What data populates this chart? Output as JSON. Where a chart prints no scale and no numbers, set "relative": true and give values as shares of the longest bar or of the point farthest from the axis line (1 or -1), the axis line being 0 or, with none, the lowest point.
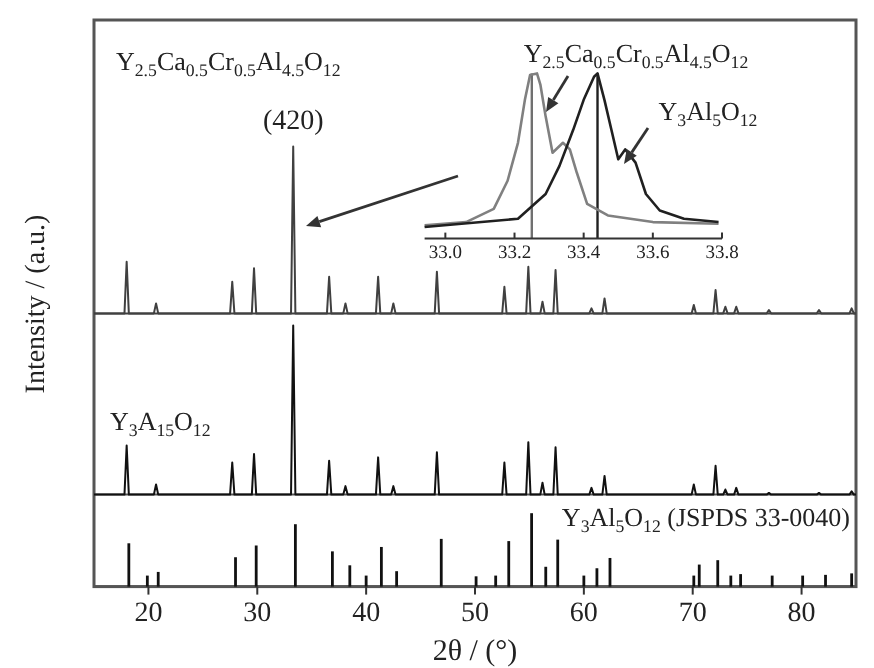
{
  "chart_data": [
    {
      "type": "line",
      "relative": true,
      "xlim": [
        15,
        85
      ],
      "tick_labels": false,
      "annotations": [
        "Y$_{2.5}$Ca$_{0.5}$Cr$_{0.5}$Al$_{4.5}$O$_{12}$",
        {
          "text": "(420)",
          "x": 33.3,
          "y": 1
        }
      ],
      "x": [
        15,
        17.8,
        18,
        18.2,
        20.5,
        20.7,
        20.9,
        27.5,
        27.7,
        27.9,
        29.5,
        29.7,
        29.9,
        33.1,
        33.3,
        33.5,
        36.4,
        36.6,
        36.8,
        37.9,
        38.1,
        38.3,
        40.9,
        41.1,
        41.3,
        42.3,
        42.5,
        42.7,
        46.3,
        46.5,
        46.7,
        52.5,
        52.7,
        52.9,
        54.7,
        54.9,
        55.1,
        56,
        56.2,
        56.4,
        57.2,
        57.4,
        57.6,
        60.5,
        60.7,
        60.9,
        61.7,
        61.9,
        62.1,
        69.9,
        70.1,
        70.3,
        71.9,
        72.1,
        72.3,
        72.8,
        73,
        73.2,
        73.8,
        74,
        74.2,
        76.8,
        77,
        77.2,
        81.4,
        81.6,
        81.8,
        84.4,
        84.6,
        84.8,
        85
      ],
      "series": [
        {
          "color": "#404040",
          "values": [
            0,
            0,
            0.31,
            0,
            0,
            0.06,
            0,
            0,
            0.19,
            0,
            0,
            0.27,
            0,
            0,
            1,
            0,
            0,
            0.22,
            0,
            0,
            0.06,
            0,
            0,
            0.22,
            0,
            0,
            0.06,
            0,
            0,
            0.25,
            0,
            0,
            0.16,
            0,
            0,
            0.28,
            0,
            0,
            0.07,
            0,
            0,
            0.26,
            0,
            0,
            0.03,
            0,
            0,
            0.09,
            0,
            0,
            0.05,
            0,
            0,
            0.14,
            0,
            0,
            0.04,
            0,
            0,
            0.04,
            0,
            0,
            0.02,
            0,
            0,
            0.02,
            0,
            0,
            0.03,
            0,
            0
          ]
        }
      ]
    },
    {
      "type": "line",
      "relative": true,
      "xlim": [
        15,
        85
      ],
      "tick_labels": false,
      "ylabel": "Intensity / (a.u.)",
      "annotations": [
        "Y$_{3}$A$_{15}$O$_{12}$"
      ],
      "x": [
        15,
        17.8,
        18,
        18.2,
        20.5,
        20.7,
        20.9,
        27.5,
        27.7,
        27.9,
        29.5,
        29.7,
        29.9,
        33.1,
        33.3,
        33.5,
        36.4,
        36.6,
        36.8,
        37.9,
        38.1,
        38.3,
        40.9,
        41.1,
        41.3,
        42.3,
        42.5,
        42.7,
        46.3,
        46.5,
        46.7,
        52.5,
        52.7,
        52.9,
        54.7,
        54.9,
        55.1,
        56,
        56.2,
        56.4,
        57.2,
        57.4,
        57.6,
        60.5,
        60.7,
        60.9,
        61.7,
        61.9,
        62.1,
        69.9,
        70.1,
        70.3,
        71.9,
        72.1,
        72.3,
        72.8,
        73,
        73.2,
        73.8,
        74,
        74.2,
        76.8,
        77,
        77.2,
        81.4,
        81.6,
        81.8,
        84.4,
        84.6,
        84.8,
        85
      ],
      "series": [
        {
          "color": "#111111",
          "values": [
            0,
            0,
            0.29,
            0,
            0,
            0.06,
            0,
            0,
            0.19,
            0,
            0,
            0.24,
            0,
            0,
            1,
            0,
            0,
            0.2,
            0,
            0,
            0.05,
            0,
            0,
            0.22,
            0,
            0,
            0.05,
            0,
            0,
            0.25,
            0,
            0,
            0.19,
            0,
            0,
            0.31,
            0,
            0,
            0.07,
            0,
            0,
            0.28,
            0,
            0,
            0.04,
            0,
            0,
            0.11,
            0,
            0,
            0.06,
            0,
            0,
            0.17,
            0,
            0,
            0.03,
            0,
            0,
            0.04,
            0,
            0,
            0.01,
            0,
            0,
            0.01,
            0,
            0,
            0.02,
            0,
            0
          ]
        }
      ]
    },
    {
      "type": "bar",
      "relative": true,
      "xlim": [
        15,
        85
      ],
      "xticks": [
        20,
        30,
        40,
        50,
        60,
        70,
        80
      ],
      "tick_labels": "x",
      "xlabel": "2θ / (°)",
      "annotations": [
        "Y$_{3}$Al$_{5}$O$_{12}$ (JSPDS 33-0040)"
      ],
      "x": [
        18.2,
        19.9,
        20.9,
        28.0,
        29.9,
        33.5,
        36.9,
        38.5,
        40.0,
        41.4,
        42.8,
        46.9,
        50.1,
        51.9,
        53.1,
        55.2,
        56.5,
        57.6,
        60.0,
        61.2,
        62.4,
        70.1,
        70.6,
        72.3,
        73.5,
        74.4,
        77.3,
        80.1,
        82.2,
        84.6
      ],
      "series": [
        {
          "color": "#111111",
          "values": [
            0.59,
            0.15,
            0.2,
            0.4,
            0.56,
            0.85,
            0.48,
            0.29,
            0.15,
            0.54,
            0.21,
            0.65,
            0.14,
            0.15,
            0.62,
            1.0,
            0.27,
            0.64,
            0.15,
            0.25,
            0.39,
            0.15,
            0.3,
            0.36,
            0.15,
            0.17,
            0.15,
            0.15,
            0.16,
            0.18
          ]
        }
      ]
    },
    {
      "type": "line",
      "relative": true,
      "xlim": [
        32.94,
        33.8
      ],
      "xticks": [
        {
          "value": 33,
          "label": "33.0"
        },
        33.2,
        33.4,
        33.6,
        33.8
      ],
      "tick_labels": "x",
      "ref_lines": [
        {
          "axis": "x",
          "value": 33.25,
          "color": "#707070"
        },
        {
          "axis": "x",
          "value": 33.44,
          "color": "#202020"
        }
      ],
      "series": [
        {
          "name": "Y$_{2.5}$Ca$_{0.5}$Cr$_{0.5}$Al$_{4.5}$O$_{12}$",
          "color": "#808080",
          "x": [
            32.94,
            33.06,
            33.14,
            33.18,
            33.21,
            33.23,
            33.245,
            33.265,
            33.275,
            33.29,
            33.31,
            33.34,
            33.36,
            33.38,
            33.41,
            33.47,
            33.6,
            33.79
          ],
          "values": [
            0.08,
            0.1,
            0.18,
            0.35,
            0.58,
            0.84,
            0.99,
            1.0,
            0.93,
            0.74,
            0.52,
            0.58,
            0.54,
            0.4,
            0.21,
            0.14,
            0.1,
            0.09
          ]
        },
        {
          "name": "Y$_{3}$Al$_{5}$O$_{12}$",
          "color": "#202020",
          "x": [
            32.94,
            33.21,
            33.29,
            33.33,
            33.37,
            33.4,
            33.43,
            33.44,
            33.46,
            33.48,
            33.5,
            33.52,
            33.55,
            33.58,
            33.62,
            33.69,
            33.79
          ],
          "values": [
            0.07,
            0.12,
            0.27,
            0.44,
            0.66,
            0.84,
            0.98,
            1.0,
            0.84,
            0.66,
            0.48,
            0.54,
            0.46,
            0.27,
            0.17,
            0.12,
            0.1
          ]
        }
      ]
    }
  ]
}
